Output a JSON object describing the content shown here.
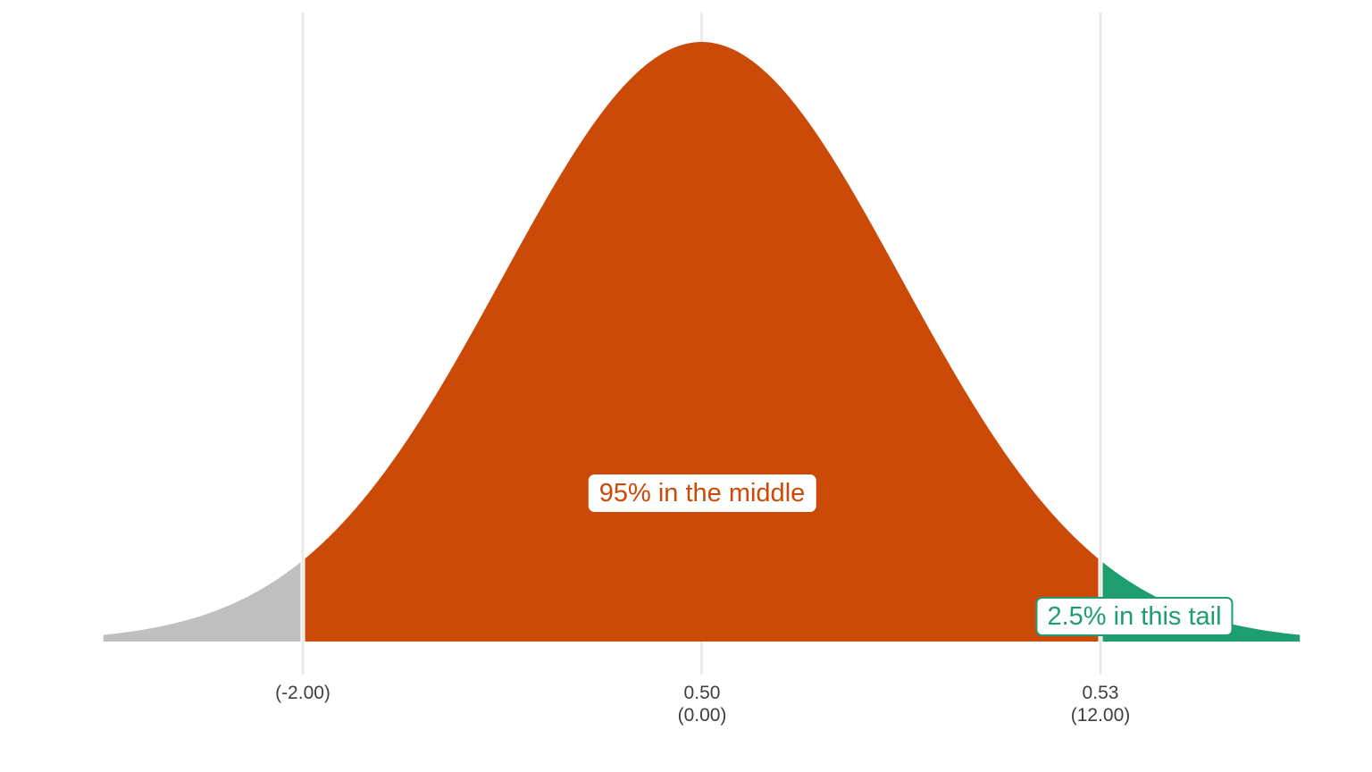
{
  "page": {
    "background_color": "#ffffff"
  },
  "chart_data": {
    "type": "area",
    "subtype": "normal-distribution-density",
    "title": "",
    "xlabel": "",
    "ylabel": "",
    "grid": "vertical-gridlines-only",
    "x_domain_sd": [
      -3,
      3
    ],
    "gridlines_sd": [
      -2,
      0,
      2
    ],
    "gridline_color": "#e8e8e8",
    "tick_text_color": "#3e3e3e",
    "regions": [
      {
        "name": "left-tail",
        "sd_range": [
          -3,
          -2
        ],
        "color": "#bfbfbf",
        "share": ""
      },
      {
        "name": "middle",
        "sd_range": [
          -2,
          2
        ],
        "color": "#cc4a08",
        "share": "95%"
      },
      {
        "name": "right-tail",
        "sd_range": [
          2,
          3
        ],
        "color": "#1e9e6e",
        "share": "2.5%"
      }
    ],
    "x_ticks": [
      {
        "sd": -2,
        "line1": "",
        "line2": "(-2.00)"
      },
      {
        "sd": 0,
        "line1": "0.50",
        "line2": "(0.00)"
      },
      {
        "sd": 2,
        "line1": "0.53",
        "line2": "(12.00)"
      }
    ],
    "annotations": [
      {
        "name": "middle-label",
        "text": "95% in the middle",
        "color": "#cc4a08",
        "bordered": false
      },
      {
        "name": "right-tail-label",
        "text": "2.5% in this tail",
        "color": "#1e9e6e",
        "bordered": true
      }
    ]
  }
}
